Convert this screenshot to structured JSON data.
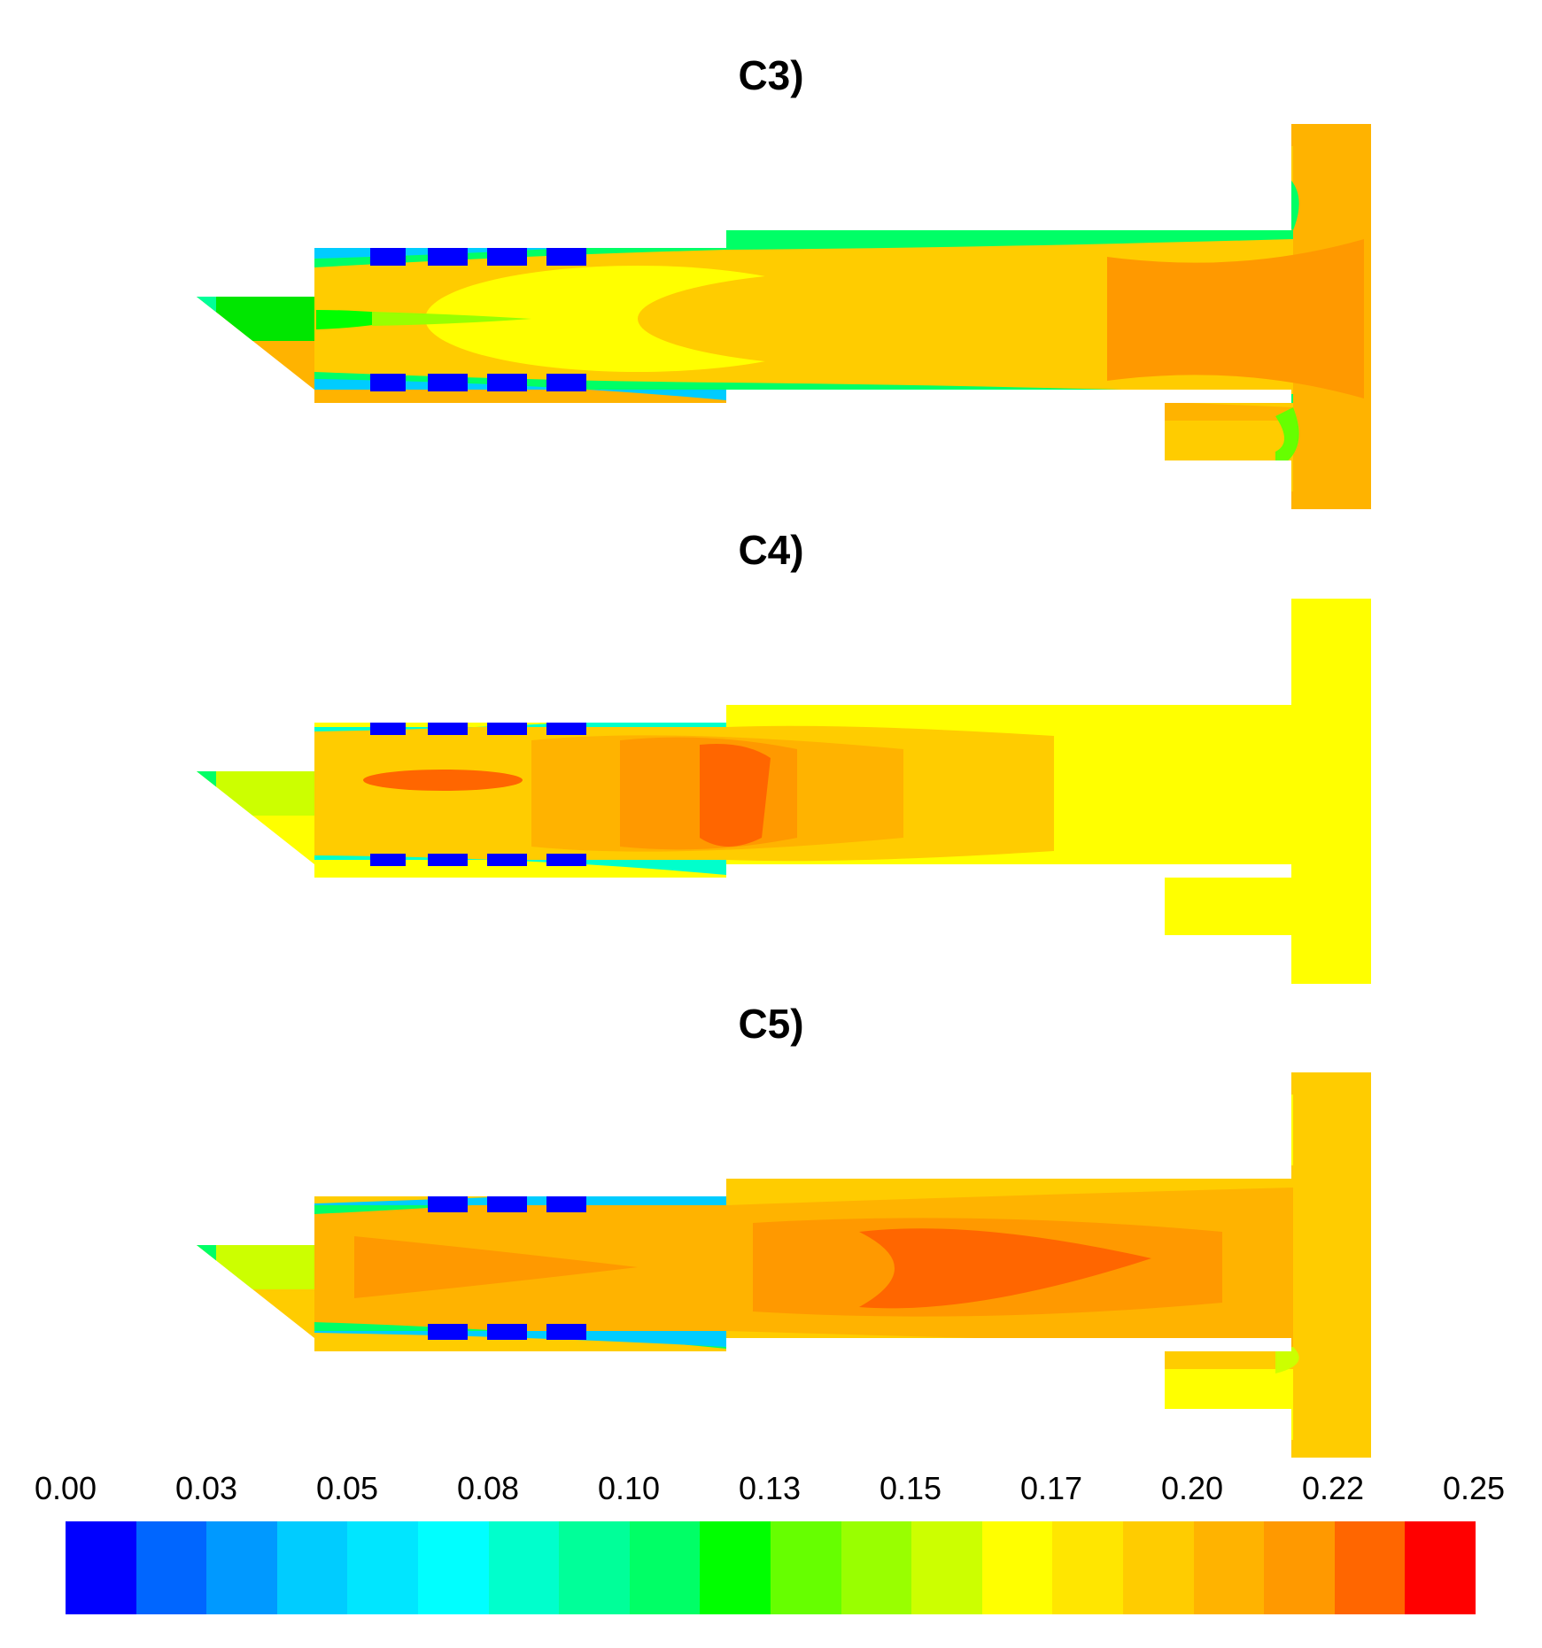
{
  "panels": [
    {
      "title": "C3)"
    },
    {
      "title": "C4)"
    },
    {
      "title": "C5)"
    }
  ],
  "colorbar": {
    "labels": [
      "0.00",
      "0.03",
      "0.05",
      "0.08",
      "0.10",
      "0.13",
      "0.15",
      "0.17",
      "0.20",
      "0.22",
      "0.25"
    ],
    "colors": [
      "#0000ff",
      "#0066ff",
      "#0099ff",
      "#00ccff",
      "#00e6ff",
      "#00ffff",
      "#00ffcc",
      "#00ff99",
      "#00ff66",
      "#00ff00",
      "#66ff00",
      "#99ff00",
      "#ccff00",
      "#ffff00",
      "#ffe600",
      "#ffcc00",
      "#ffb300",
      "#ff9900",
      "#ff6600",
      "#ff0000"
    ]
  },
  "colors": {
    "background": "#ffffff",
    "low": "#0000ff",
    "mid": "#00ff00",
    "yellow": "#ffff00",
    "orange": "#ff9900",
    "high": "#ff0000"
  }
}
